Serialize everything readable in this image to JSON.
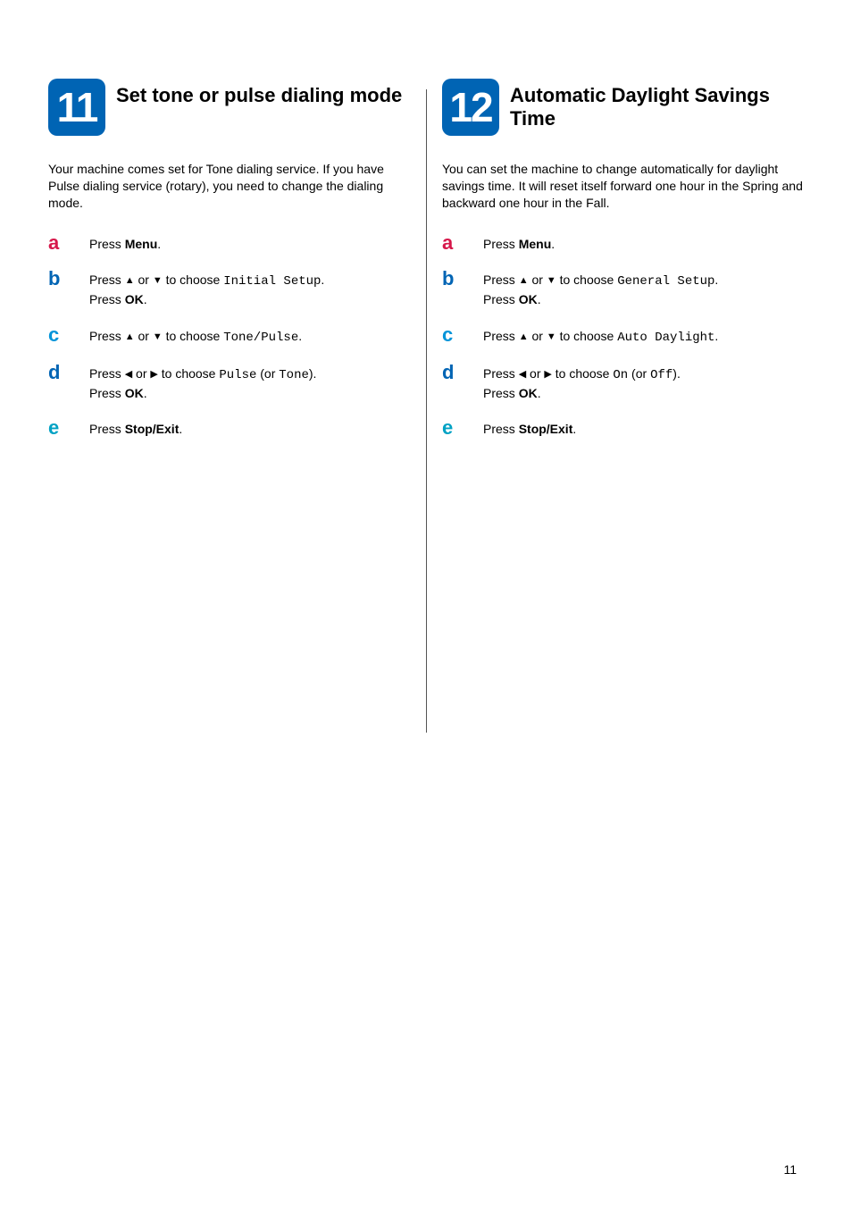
{
  "page_number": "11",
  "colors": {
    "badge_bg": "#0064b4",
    "letter_a": "#d6174a",
    "letter_b": "#0064b4",
    "letter_c": "#0094d9",
    "letter_d": "#0064b4",
    "letter_e": "#00a2c4",
    "text": "#000000",
    "divider": "#555555"
  },
  "left": {
    "number": "11",
    "title": "Set tone or pulse dialing mode",
    "intro": "Your machine comes set for Tone dialing service. If you have Pulse dialing service (rotary), you need to change the dialing mode.",
    "steps": {
      "a": {
        "color_key": "letter_a",
        "parts": [
          {
            "t": "Press "
          },
          {
            "t": "Menu",
            "b": true
          },
          {
            "t": "."
          }
        ]
      },
      "b": {
        "color_key": "letter_b",
        "parts": [
          {
            "t": "Press "
          },
          {
            "t": "▲",
            "arrow": true
          },
          {
            "t": " or "
          },
          {
            "t": "▼",
            "arrow": true
          },
          {
            "t": " to choose "
          },
          {
            "t": "Initial Setup",
            "mono": true
          },
          {
            "t": ".",
            "br": true
          },
          {
            "t": "Press "
          },
          {
            "t": "OK",
            "b": true
          },
          {
            "t": "."
          }
        ]
      },
      "c": {
        "color_key": "letter_c",
        "parts": [
          {
            "t": "Press "
          },
          {
            "t": "▲",
            "arrow": true
          },
          {
            "t": " or "
          },
          {
            "t": "▼",
            "arrow": true
          },
          {
            "t": " to choose "
          },
          {
            "t": "Tone/Pulse",
            "mono": true
          },
          {
            "t": "."
          }
        ]
      },
      "d": {
        "color_key": "letter_d",
        "parts": [
          {
            "t": "Press "
          },
          {
            "t": "◀",
            "arrow": true
          },
          {
            "t": " or "
          },
          {
            "t": "▶",
            "arrow": true
          },
          {
            "t": " to choose "
          },
          {
            "t": "Pulse",
            "mono": true
          },
          {
            "t": " (or "
          },
          {
            "t": "Tone",
            "mono": true
          },
          {
            "t": ").",
            "br": true
          },
          {
            "t": "Press "
          },
          {
            "t": "OK",
            "b": true
          },
          {
            "t": "."
          }
        ]
      },
      "e": {
        "color_key": "letter_e",
        "parts": [
          {
            "t": "Press "
          },
          {
            "t": "Stop/Exit",
            "b": true
          },
          {
            "t": "."
          }
        ]
      }
    }
  },
  "right": {
    "number": "12",
    "title": "Automatic Daylight Savings Time",
    "intro": "You can set the machine to change automatically for daylight savings time. It will reset itself forward one hour in the Spring and backward one hour in the Fall.",
    "steps": {
      "a": {
        "color_key": "letter_a",
        "parts": [
          {
            "t": "Press "
          },
          {
            "t": "Menu",
            "b": true
          },
          {
            "t": "."
          }
        ]
      },
      "b": {
        "color_key": "letter_b",
        "parts": [
          {
            "t": "Press "
          },
          {
            "t": "▲",
            "arrow": true
          },
          {
            "t": " or "
          },
          {
            "t": "▼",
            "arrow": true
          },
          {
            "t": " to choose "
          },
          {
            "t": "General Setup",
            "mono": true
          },
          {
            "t": ".",
            "br": true
          },
          {
            "t": "Press "
          },
          {
            "t": "OK",
            "b": true
          },
          {
            "t": "."
          }
        ]
      },
      "c": {
        "color_key": "letter_c",
        "parts": [
          {
            "t": "Press "
          },
          {
            "t": "▲",
            "arrow": true
          },
          {
            "t": " or "
          },
          {
            "t": "▼",
            "arrow": true
          },
          {
            "t": " to choose "
          },
          {
            "t": "Auto Daylight",
            "mono": true
          },
          {
            "t": "."
          }
        ]
      },
      "d": {
        "color_key": "letter_d",
        "parts": [
          {
            "t": "Press "
          },
          {
            "t": "◀",
            "arrow": true
          },
          {
            "t": " or "
          },
          {
            "t": "▶",
            "arrow": true
          },
          {
            "t": " to choose "
          },
          {
            "t": "On",
            "mono": true
          },
          {
            "t": " (or "
          },
          {
            "t": "Off",
            "mono": true
          },
          {
            "t": ").",
            "br": true
          },
          {
            "t": "Press "
          },
          {
            "t": "OK",
            "b": true
          },
          {
            "t": "."
          }
        ]
      },
      "e": {
        "color_key": "letter_e",
        "parts": [
          {
            "t": "Press "
          },
          {
            "t": "Stop/Exit",
            "b": true
          },
          {
            "t": "."
          }
        ]
      }
    }
  }
}
